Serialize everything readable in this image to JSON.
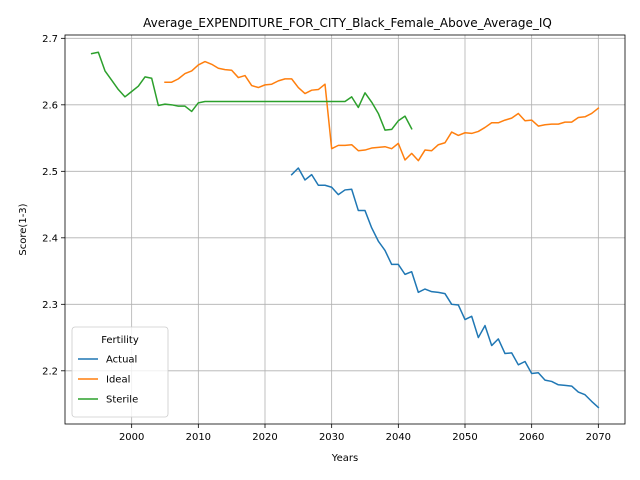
{
  "chart_data": {
    "type": "line",
    "title": "Average_EXPENDITURE_FOR_CITY_Black_Female_Above_Average_IQ",
    "xlabel": "Years",
    "ylabel": "Score(1-3)",
    "xlim": [
      1990,
      2074
    ],
    "ylim": [
      2.12,
      2.705
    ],
    "x_ticks": [
      2000,
      2010,
      2020,
      2030,
      2040,
      2050,
      2060,
      2070
    ],
    "y_ticks": [
      2.2,
      2.3,
      2.4,
      2.5,
      2.6,
      2.7
    ],
    "grid": true,
    "legend": {
      "title": "Fertility",
      "placement": "lower-left"
    },
    "series": [
      {
        "name": "Actual",
        "color": "#1f77b4",
        "x": [
          2024,
          2025,
          2026,
          2027,
          2028,
          2029,
          2030,
          2031,
          2032,
          2033,
          2034,
          2035,
          2036,
          2037,
          2038,
          2039,
          2040,
          2041,
          2042,
          2043,
          2044,
          2045,
          2046,
          2047,
          2048,
          2049,
          2050,
          2051,
          2052,
          2053,
          2054,
          2055,
          2056,
          2057,
          2058,
          2059,
          2060,
          2061,
          2062,
          2063,
          2064,
          2065,
          2066,
          2067,
          2068,
          2069,
          2070
        ],
        "y": [
          2.495,
          2.505,
          2.487,
          2.495,
          2.479,
          2.479,
          2.476,
          2.465,
          2.472,
          2.473,
          2.441,
          2.441,
          2.415,
          2.395,
          2.381,
          2.36,
          2.36,
          2.345,
          2.349,
          2.318,
          2.323,
          2.319,
          2.318,
          2.316,
          2.3,
          2.299,
          2.277,
          2.282,
          2.25,
          2.268,
          2.238,
          2.248,
          2.226,
          2.227,
          2.209,
          2.214,
          2.196,
          2.197,
          2.186,
          2.184,
          2.179,
          2.178,
          2.177,
          2.168,
          2.164,
          2.154,
          2.145
        ]
      },
      {
        "name": "Ideal",
        "color": "#ff7f0e",
        "x": [
          2005,
          2006,
          2007,
          2008,
          2009,
          2010,
          2011,
          2012,
          2013,
          2014,
          2015,
          2016,
          2017,
          2018,
          2019,
          2020,
          2021,
          2022,
          2023,
          2024,
          2025,
          2026,
          2027,
          2028,
          2029,
          2030,
          2031,
          2032,
          2033,
          2034,
          2035,
          2036,
          2037,
          2038,
          2039,
          2040,
          2041,
          2042,
          2043,
          2044,
          2045,
          2046,
          2047,
          2048,
          2049,
          2050,
          2051,
          2052,
          2053,
          2054,
          2055,
          2056,
          2057,
          2058,
          2059,
          2060,
          2061,
          2062,
          2063,
          2064,
          2065,
          2066,
          2067,
          2068,
          2069,
          2070
        ],
        "y": [
          2.634,
          2.634,
          2.639,
          2.647,
          2.651,
          2.66,
          2.665,
          2.661,
          2.655,
          2.653,
          2.652,
          2.641,
          2.644,
          2.629,
          2.626,
          2.63,
          2.631,
          2.636,
          2.639,
          2.639,
          2.626,
          2.617,
          2.622,
          2.623,
          2.631,
          2.534,
          2.539,
          2.539,
          2.54,
          2.531,
          2.532,
          2.535,
          2.536,
          2.537,
          2.534,
          2.542,
          2.517,
          2.527,
          2.516,
          2.532,
          2.531,
          2.54,
          2.543,
          2.559,
          2.554,
          2.558,
          2.557,
          2.56,
          2.566,
          2.573,
          2.573,
          2.577,
          2.58,
          2.587,
          2.576,
          2.577,
          2.568,
          2.57,
          2.571,
          2.571,
          2.574,
          2.574,
          2.581,
          2.582,
          2.587,
          2.595
        ]
      },
      {
        "name": "Sterile",
        "color": "#2ca02c",
        "x": [
          1994,
          1995,
          1996,
          1997,
          1998,
          1999,
          2000,
          2001,
          2002,
          2003,
          2004,
          2005,
          2006,
          2007,
          2008,
          2009,
          2010,
          2011,
          2012,
          2013,
          2014,
          2015,
          2016,
          2017,
          2018,
          2019,
          2020,
          2021,
          2022,
          2023,
          2024,
          2025,
          2026,
          2027,
          2028,
          2029,
          2030,
          2031,
          2032,
          2033,
          2034,
          2035,
          2036,
          2037,
          2038,
          2039,
          2040,
          2041,
          2042
        ],
        "y": [
          2.677,
          2.679,
          2.651,
          2.637,
          2.623,
          2.612,
          2.62,
          2.628,
          2.642,
          2.64,
          2.599,
          2.601,
          2.6,
          2.598,
          2.598,
          2.59,
          2.603,
          2.605,
          2.605,
          2.605,
          2.605,
          2.605,
          2.605,
          2.605,
          2.605,
          2.605,
          2.605,
          2.605,
          2.605,
          2.605,
          2.605,
          2.605,
          2.605,
          2.605,
          2.605,
          2.605,
          2.605,
          2.605,
          2.605,
          2.612,
          2.596,
          2.618,
          2.604,
          2.587,
          2.562,
          2.563,
          2.576,
          2.583,
          2.564
        ]
      }
    ]
  }
}
